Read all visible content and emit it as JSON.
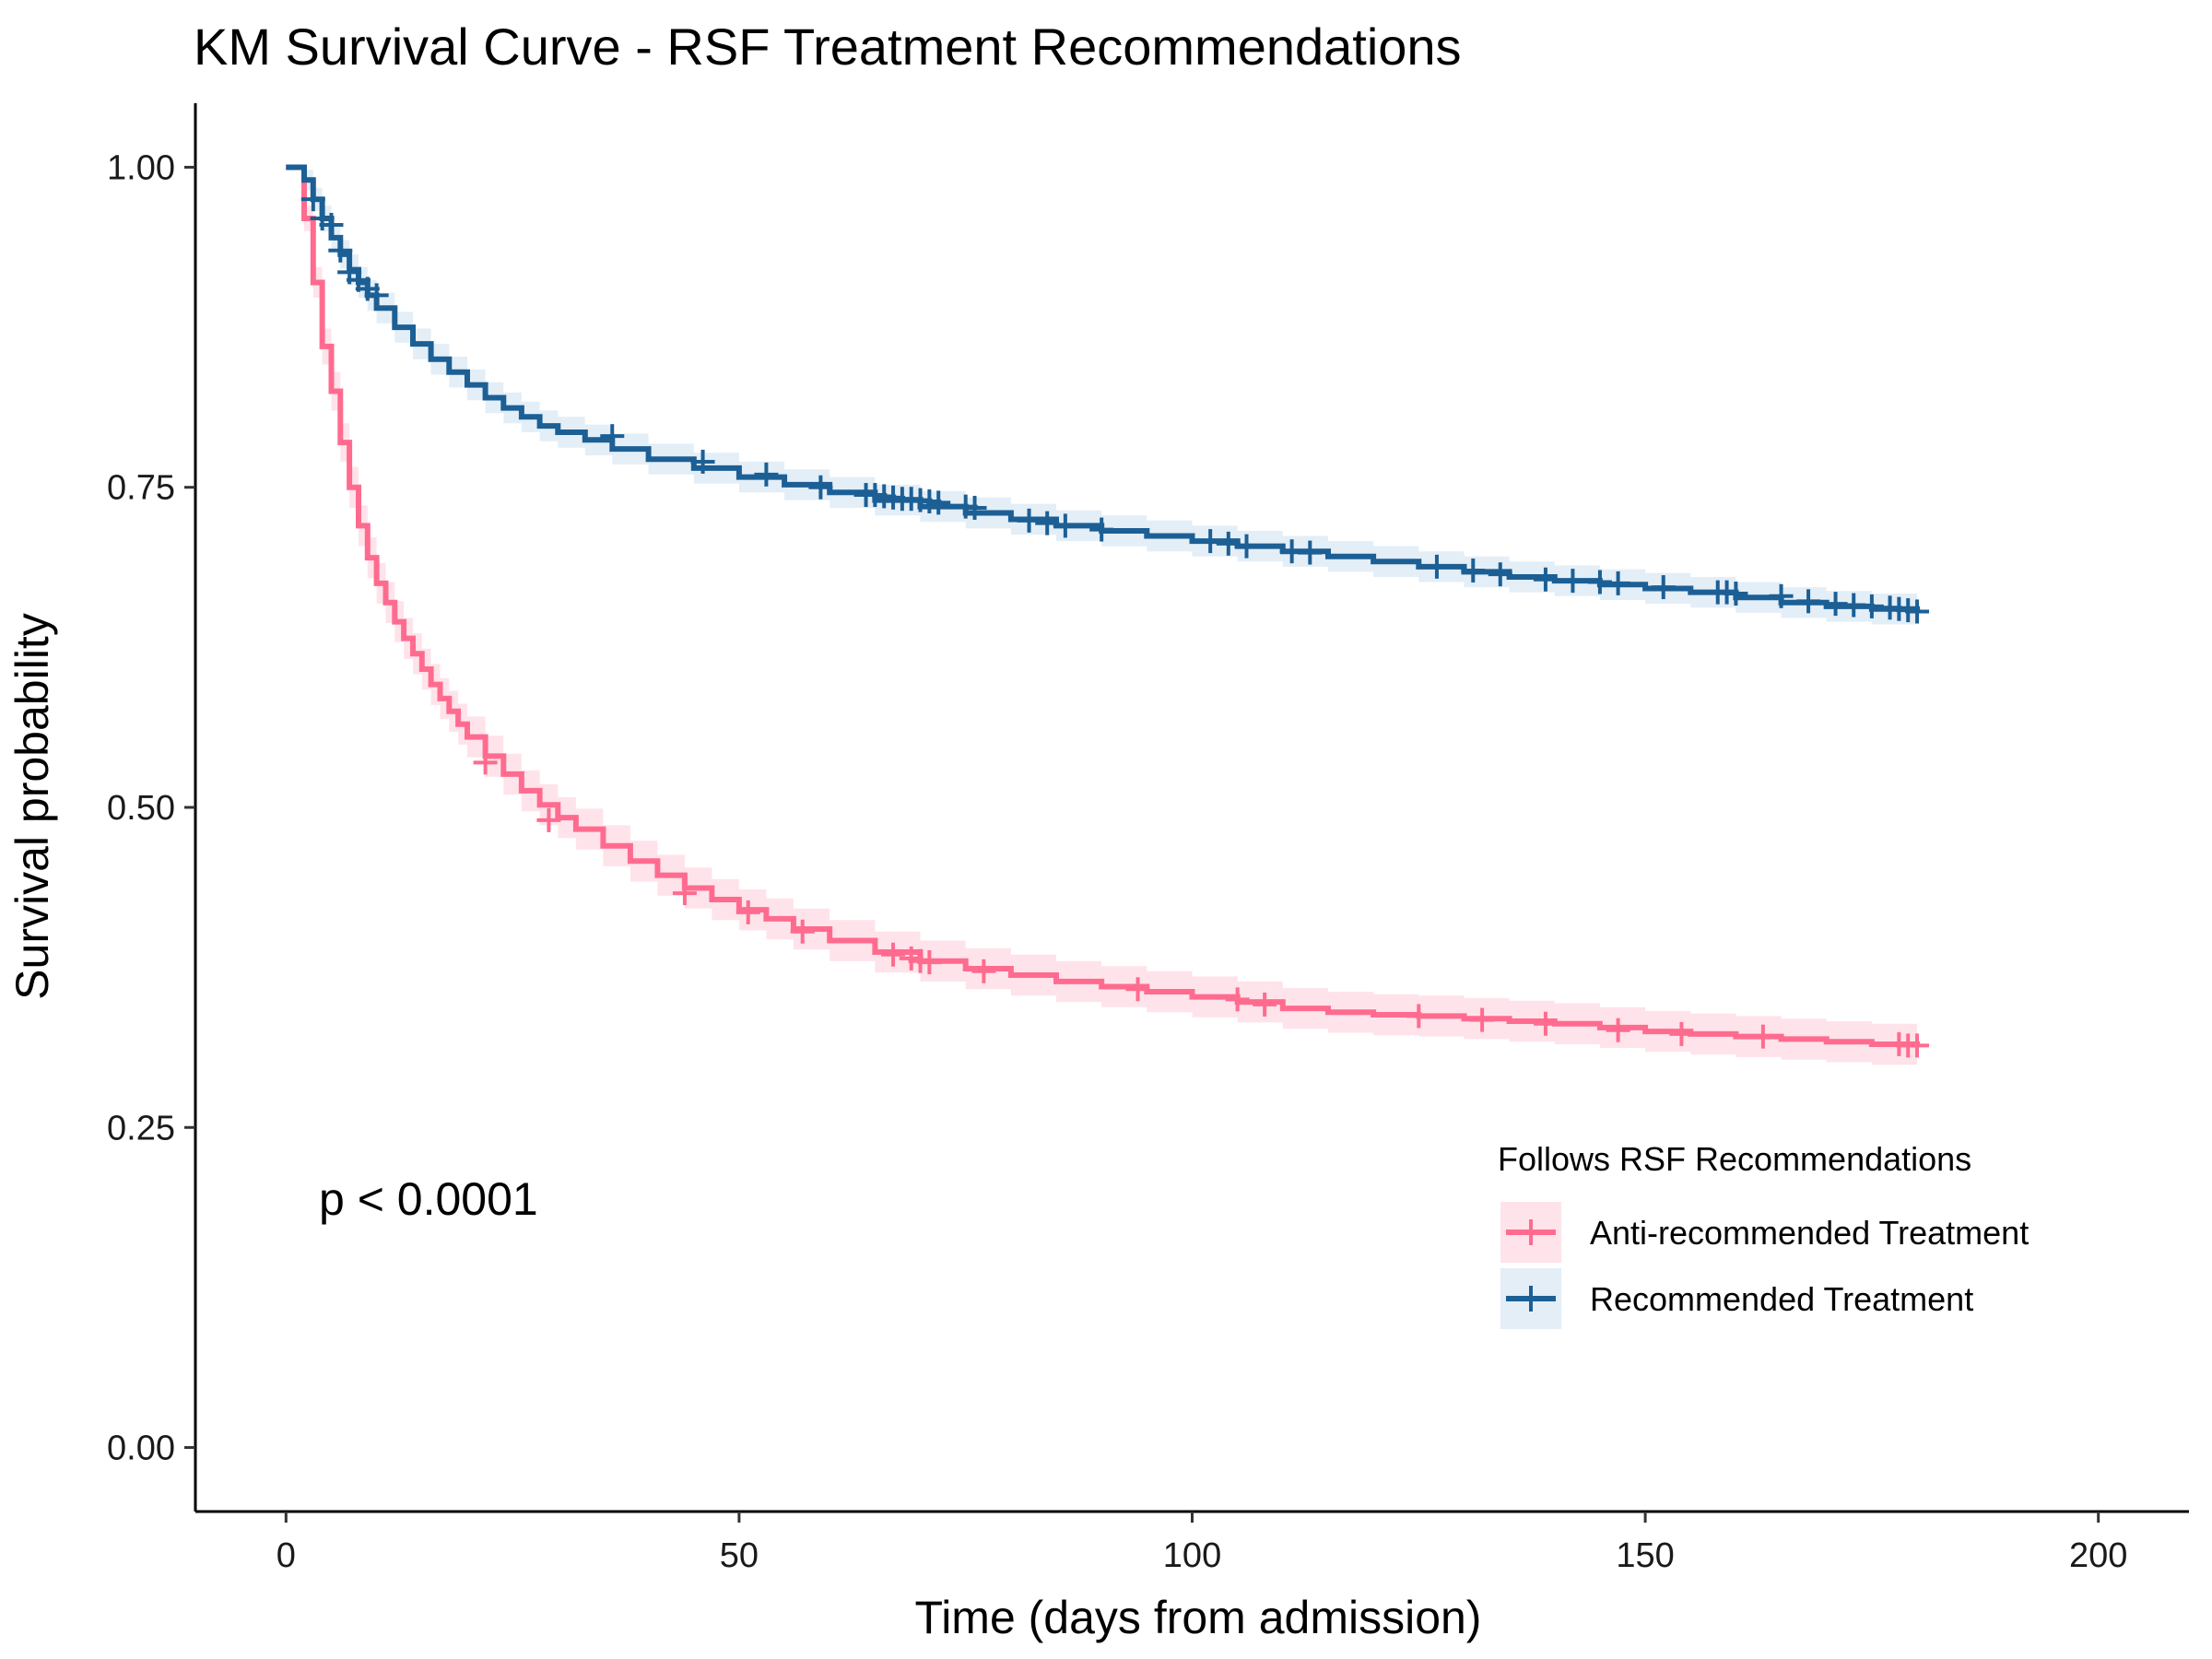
{
  "chart_data": {
    "type": "line",
    "title": "KM Survival Curve - RSF Treatment Recommendations",
    "xlabel": "Time (days from admission)",
    "ylabel": "Survival probability",
    "xlim": [
      -10,
      210
    ],
    "ylim": [
      -0.05,
      1.05
    ],
    "x_ticks": [
      0,
      50,
      100,
      150,
      200
    ],
    "x_tick_labels": [
      "0",
      "50",
      "100",
      "150",
      "200"
    ],
    "y_ticks": [
      0,
      0.25,
      0.5,
      0.75,
      1.0
    ],
    "y_tick_labels": [
      "0.00",
      "0.25",
      "0.50",
      "0.75",
      "1.00"
    ],
    "grid": false,
    "annotation": "p < 0.0001",
    "legend": {
      "title": "Follows RSF Recommendations",
      "position": "right"
    },
    "series": [
      {
        "name": "Anti-recommended Treatment",
        "color": "#ff6b8f",
        "ci_color": "#ffe3ea",
        "x": [
          0,
          2,
          3,
          4,
          5,
          6,
          7,
          8,
          9,
          10,
          11,
          12,
          13,
          14,
          15,
          16,
          17,
          18,
          19,
          20,
          22,
          24,
          26,
          28,
          30,
          32,
          35,
          38,
          41,
          44,
          47,
          50,
          53,
          56,
          60,
          65,
          70,
          75,
          80,
          85,
          90,
          95,
          100,
          105,
          110,
          115,
          120,
          125,
          130,
          135,
          140,
          145,
          150,
          155,
          160,
          165,
          170,
          175,
          180
        ],
        "y": [
          1.0,
          0.96,
          0.91,
          0.86,
          0.825,
          0.785,
          0.75,
          0.72,
          0.695,
          0.675,
          0.66,
          0.645,
          0.632,
          0.62,
          0.608,
          0.596,
          0.585,
          0.575,
          0.565,
          0.555,
          0.54,
          0.526,
          0.513,
          0.502,
          0.492,
          0.483,
          0.47,
          0.458,
          0.447,
          0.437,
          0.428,
          0.42,
          0.413,
          0.405,
          0.396,
          0.387,
          0.38,
          0.374,
          0.369,
          0.364,
          0.36,
          0.356,
          0.352,
          0.348,
          0.343,
          0.34,
          0.338,
          0.337,
          0.335,
          0.333,
          0.331,
          0.328,
          0.325,
          0.323,
          0.321,
          0.319,
          0.317,
          0.315,
          0.314
        ],
        "ci_halfwidth": [
          0,
          0.01,
          0.012,
          0.014,
          0.015,
          0.015,
          0.016,
          0.016,
          0.016,
          0.016,
          0.016,
          0.016,
          0.016,
          0.016,
          0.016,
          0.016,
          0.016,
          0.016,
          0.016,
          0.016,
          0.016,
          0.016,
          0.016,
          0.016,
          0.016,
          0.016,
          0.016,
          0.016,
          0.016,
          0.016,
          0.016,
          0.016,
          0.016,
          0.016,
          0.016,
          0.016,
          0.016,
          0.016,
          0.016,
          0.016,
          0.016,
          0.016,
          0.016,
          0.016,
          0.016,
          0.016,
          0.016,
          0.016,
          0.016,
          0.016,
          0.016,
          0.016,
          0.016,
          0.016,
          0.016,
          0.016,
          0.016,
          0.016,
          0.016
        ],
        "censor_x": [
          22,
          29,
          44,
          51,
          57,
          67,
          69,
          70,
          71,
          77,
          94,
          105,
          108,
          125,
          132,
          139,
          147,
          154,
          163,
          178,
          179,
          180
        ],
        "censor_y": [
          0.535,
          0.49,
          0.433,
          0.418,
          0.403,
          0.385,
          0.382,
          0.38,
          0.379,
          0.372,
          0.358,
          0.35,
          0.346,
          0.337,
          0.334,
          0.331,
          0.326,
          0.323,
          0.321,
          0.315,
          0.314,
          0.314
        ]
      },
      {
        "name": "Recommended Treatment",
        "color": "#1c5f95",
        "ci_color": "#e3eef7",
        "x": [
          0,
          2,
          3,
          4,
          5,
          6,
          7,
          8,
          9,
          10,
          12,
          14,
          16,
          18,
          20,
          22,
          24,
          26,
          28,
          30,
          33,
          36,
          40,
          45,
          50,
          55,
          60,
          65,
          70,
          75,
          80,
          85,
          90,
          95,
          100,
          105,
          110,
          115,
          120,
          125,
          130,
          135,
          140,
          145,
          150,
          155,
          160,
          165,
          170,
          175,
          180
        ],
        "y": [
          1.0,
          0.99,
          0.975,
          0.96,
          0.945,
          0.932,
          0.92,
          0.91,
          0.9,
          0.89,
          0.875,
          0.862,
          0.85,
          0.84,
          0.83,
          0.82,
          0.812,
          0.805,
          0.798,
          0.793,
          0.787,
          0.78,
          0.772,
          0.765,
          0.758,
          0.752,
          0.746,
          0.74,
          0.735,
          0.73,
          0.725,
          0.72,
          0.716,
          0.712,
          0.708,
          0.704,
          0.7,
          0.696,
          0.692,
          0.688,
          0.684,
          0.68,
          0.677,
          0.674,
          0.671,
          0.668,
          0.664,
          0.66,
          0.657,
          0.655,
          0.653
        ],
        "ci_halfwidth": [
          0,
          0.008,
          0.009,
          0.01,
          0.011,
          0.011,
          0.012,
          0.012,
          0.012,
          0.012,
          0.012,
          0.012,
          0.012,
          0.012,
          0.012,
          0.012,
          0.012,
          0.012,
          0.012,
          0.012,
          0.012,
          0.012,
          0.012,
          0.012,
          0.012,
          0.012,
          0.012,
          0.012,
          0.012,
          0.012,
          0.012,
          0.012,
          0.012,
          0.012,
          0.012,
          0.012,
          0.012,
          0.012,
          0.012,
          0.012,
          0.012,
          0.012,
          0.012,
          0.012,
          0.012,
          0.012,
          0.012,
          0.012,
          0.012,
          0.012,
          0.012
        ],
        "censor_x": [
          3,
          4,
          5,
          6,
          7,
          8,
          9,
          10,
          36,
          46,
          53,
          59,
          64,
          65,
          66,
          67,
          68,
          69,
          70,
          71,
          72,
          75,
          76,
          82,
          84,
          86,
          90,
          102,
          104,
          106,
          111,
          113,
          127,
          131,
          134,
          139,
          142,
          145,
          147,
          152,
          158,
          159,
          160,
          165,
          168,
          171,
          173,
          175,
          177,
          178,
          179,
          180
        ],
        "censor_y": [
          0.975,
          0.96,
          0.955,
          0.935,
          0.918,
          0.912,
          0.905,
          0.9,
          0.79,
          0.77,
          0.76,
          0.75,
          0.744,
          0.744,
          0.743,
          0.742,
          0.741,
          0.741,
          0.74,
          0.739,
          0.738,
          0.735,
          0.734,
          0.724,
          0.722,
          0.72,
          0.717,
          0.708,
          0.706,
          0.704,
          0.7,
          0.699,
          0.688,
          0.685,
          0.682,
          0.678,
          0.677,
          0.676,
          0.675,
          0.672,
          0.668,
          0.668,
          0.667,
          0.665,
          0.661,
          0.659,
          0.658,
          0.657,
          0.656,
          0.655,
          0.654,
          0.653
        ]
      }
    ]
  }
}
